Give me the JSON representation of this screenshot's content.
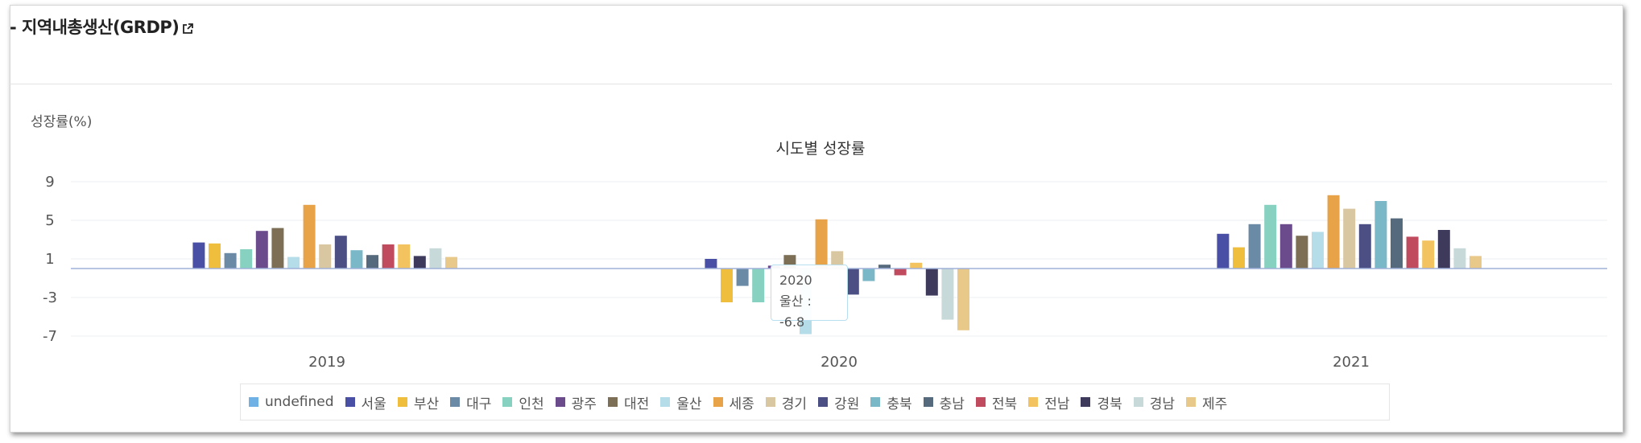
{
  "header": {
    "title": "- 지역내총생산(GRDP)",
    "link_icon": "external-link-icon"
  },
  "chart_data": {
    "type": "bar",
    "title": "시도별 성장률",
    "ylabel": "성장률(%)",
    "xlabel": "",
    "ylim": [
      -7,
      9
    ],
    "yticks": [
      9,
      5,
      1,
      -3,
      -7
    ],
    "grid": true,
    "legend_position": "bottom",
    "categories": [
      "2019",
      "2020",
      "2021"
    ],
    "series": [
      {
        "name": "undefined",
        "color": "#6fb1e5",
        "values": [
          null,
          null,
          null
        ]
      },
      {
        "name": "서울",
        "color": "#4a4fa6",
        "values": [
          2.7,
          1.0,
          3.6
        ]
      },
      {
        "name": "부산",
        "color": "#efbe3c",
        "values": [
          2.6,
          -3.5,
          2.2
        ]
      },
      {
        "name": "대구",
        "color": "#6a8aa6",
        "values": [
          1.6,
          -1.8,
          4.6
        ]
      },
      {
        "name": "인천",
        "color": "#86d1c0",
        "values": [
          2.0,
          -3.5,
          6.6
        ]
      },
      {
        "name": "광주",
        "color": "#6b4b8c",
        "values": [
          3.9,
          0.3,
          4.6
        ]
      },
      {
        "name": "대전",
        "color": "#7d6f55",
        "values": [
          4.2,
          1.4,
          3.4
        ]
      },
      {
        "name": "울산",
        "color": "#b4dde9",
        "values": [
          1.2,
          -6.8,
          3.8
        ]
      },
      {
        "name": "세종",
        "color": "#e8a248",
        "values": [
          6.6,
          5.1,
          7.6
        ]
      },
      {
        "name": "경기",
        "color": "#d9c7a2",
        "values": [
          2.5,
          1.8,
          6.2
        ]
      },
      {
        "name": "강원",
        "color": "#4b4f84",
        "values": [
          3.4,
          -2.7,
          4.6
        ]
      },
      {
        "name": "충북",
        "color": "#7ab8c8",
        "values": [
          1.9,
          -1.3,
          7.0
        ]
      },
      {
        "name": "충남",
        "color": "#566a7d",
        "values": [
          1.4,
          0.4,
          5.2
        ]
      },
      {
        "name": "전북",
        "color": "#c04b5e",
        "values": [
          2.5,
          -0.7,
          3.3
        ]
      },
      {
        "name": "전남",
        "color": "#f2c35f",
        "values": [
          2.5,
          0.6,
          2.9
        ]
      },
      {
        "name": "경북",
        "color": "#3d3a5c",
        "values": [
          1.3,
          -2.8,
          4.0
        ]
      },
      {
        "name": "경남",
        "color": "#c7dad9",
        "values": [
          2.1,
          -5.3,
          2.1
        ]
      },
      {
        "name": "제주",
        "color": "#e9c98a",
        "values": [
          1.2,
          -6.4,
          1.3
        ]
      }
    ]
  },
  "tooltip": {
    "year": "2020",
    "text": "울산 : -6.8"
  }
}
